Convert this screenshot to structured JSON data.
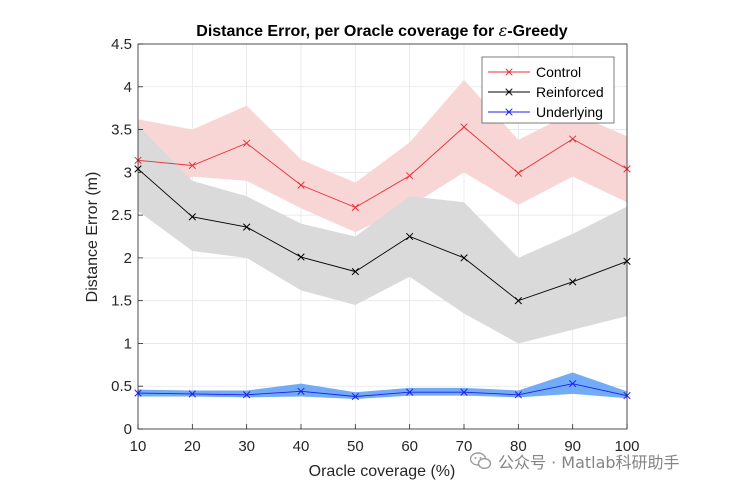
{
  "chart_data": {
    "type": "line",
    "title_prefix": "Distance Error, per Oracle coverage for ",
    "title_symbol": "ε",
    "title_suffix": "-Greedy",
    "xlabel": "Oracle coverage (%)",
    "ylabel": "Distance Error (m)",
    "xlim": [
      10,
      100
    ],
    "ylim": [
      0,
      4.5
    ],
    "x": [
      10,
      20,
      30,
      40,
      50,
      60,
      70,
      80,
      90,
      100
    ],
    "xticks": [
      "10",
      "20",
      "30",
      "40",
      "50",
      "60",
      "70",
      "80",
      "90",
      "100"
    ],
    "yticks": [
      "0",
      "0.5",
      "1",
      "1.5",
      "2",
      "2.5",
      "3",
      "3.5",
      "4",
      "4.5"
    ],
    "grid": true,
    "legend_position": "top-right",
    "series": [
      {
        "name": "Control",
        "color": "#e8313a",
        "band_color": "#f9d6d6",
        "marker": "x",
        "values": [
          3.14,
          3.08,
          3.34,
          2.85,
          2.59,
          2.96,
          3.53,
          2.99,
          3.39,
          3.04
        ],
        "upper": [
          3.62,
          3.5,
          3.78,
          3.15,
          2.88,
          3.35,
          4.08,
          3.38,
          3.7,
          3.42
        ],
        "lower": [
          2.65,
          2.95,
          2.9,
          2.58,
          2.3,
          2.6,
          3.0,
          2.62,
          2.95,
          2.65
        ]
      },
      {
        "name": "Reinforced",
        "color": "#000000",
        "band_color": "#dadada",
        "marker": "x",
        "values": [
          3.04,
          2.48,
          2.36,
          2.01,
          1.84,
          2.25,
          2.0,
          1.5,
          1.72,
          1.96
        ],
        "upper": [
          3.55,
          2.9,
          2.72,
          2.4,
          2.25,
          2.72,
          2.65,
          2.0,
          2.28,
          2.6
        ],
        "lower": [
          2.55,
          2.08,
          2.0,
          1.62,
          1.45,
          1.78,
          1.35,
          1.0,
          1.16,
          1.32
        ]
      },
      {
        "name": "Underlying",
        "color": "#1f1ff0",
        "band_color": "#6aa6f5",
        "marker": "x",
        "values": [
          0.42,
          0.41,
          0.4,
          0.44,
          0.38,
          0.43,
          0.43,
          0.4,
          0.53,
          0.39
        ],
        "upper": [
          0.46,
          0.45,
          0.45,
          0.53,
          0.43,
          0.48,
          0.48,
          0.45,
          0.66,
          0.44
        ],
        "lower": [
          0.38,
          0.38,
          0.37,
          0.38,
          0.35,
          0.39,
          0.39,
          0.37,
          0.41,
          0.36
        ]
      }
    ]
  },
  "watermark": {
    "text": "公众号 · Matlab科研助手"
  }
}
